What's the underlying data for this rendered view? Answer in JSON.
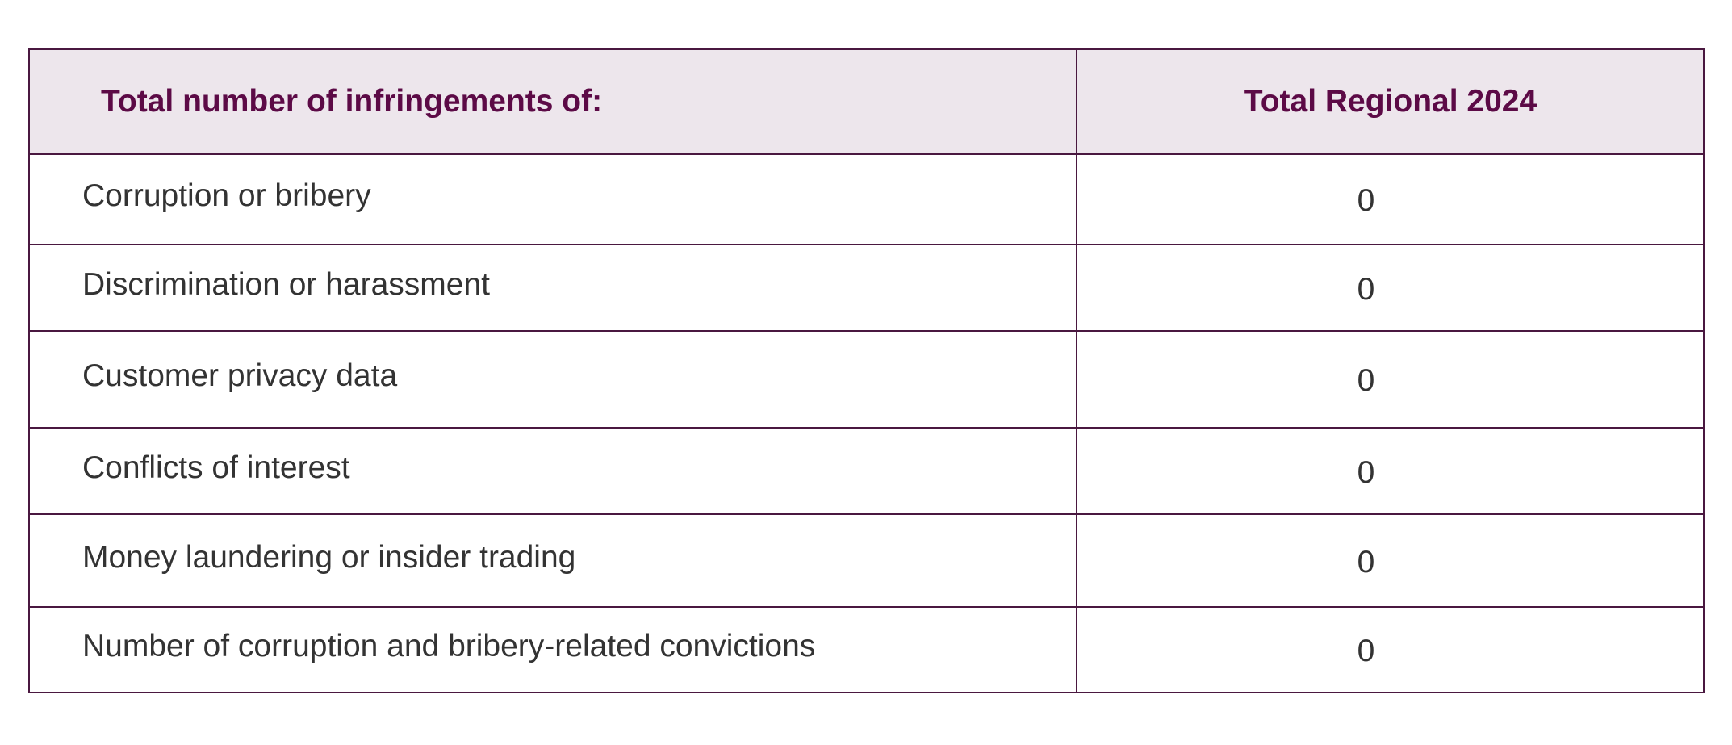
{
  "table": {
    "header": {
      "label": "Total number of infringements of:",
      "value": "Total Regional 2024"
    },
    "rows": [
      {
        "label": "Corruption or bribery",
        "value": "0"
      },
      {
        "label": "Discrimination or harassment",
        "value": "0"
      },
      {
        "label": "Customer privacy data",
        "value": "0"
      },
      {
        "label": "Conflicts of interest",
        "value": "0"
      },
      {
        "label": "Money laundering or insider trading",
        "value": "0"
      },
      {
        "label": "Number of corruption and bribery-related convictions",
        "value": "0"
      }
    ]
  },
  "colors": {
    "header_text": "#5c0a46",
    "header_background": "#ede6ec",
    "border": "#4a1840",
    "body_text": "#333333"
  }
}
